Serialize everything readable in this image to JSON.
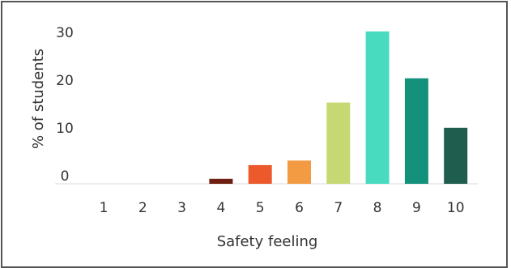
{
  "chart_data": {
    "type": "bar",
    "title": "",
    "xlabel": "Safety feeling",
    "ylabel": "% of students",
    "categories": [
      "1",
      "2",
      "3",
      "4",
      "5",
      "6",
      "7",
      "8",
      "9",
      "10"
    ],
    "values": [
      0,
      0,
      0,
      1,
      3.7,
      4.6,
      16.1,
      30.2,
      20.9,
      11.1
    ],
    "y_ticks": [
      "0",
      "10",
      "20",
      "30"
    ],
    "ylim": [
      -3,
      33
    ],
    "grid": false,
    "legend": "none",
    "colors": [
      "#6e1f12",
      "#6e1f12",
      "#6e1f12",
      "#6e1f12",
      "#ec5a2c",
      "#f39b43",
      "#c5d873",
      "#48dbc0",
      "#13917a",
      "#1f5e4f"
    ]
  }
}
